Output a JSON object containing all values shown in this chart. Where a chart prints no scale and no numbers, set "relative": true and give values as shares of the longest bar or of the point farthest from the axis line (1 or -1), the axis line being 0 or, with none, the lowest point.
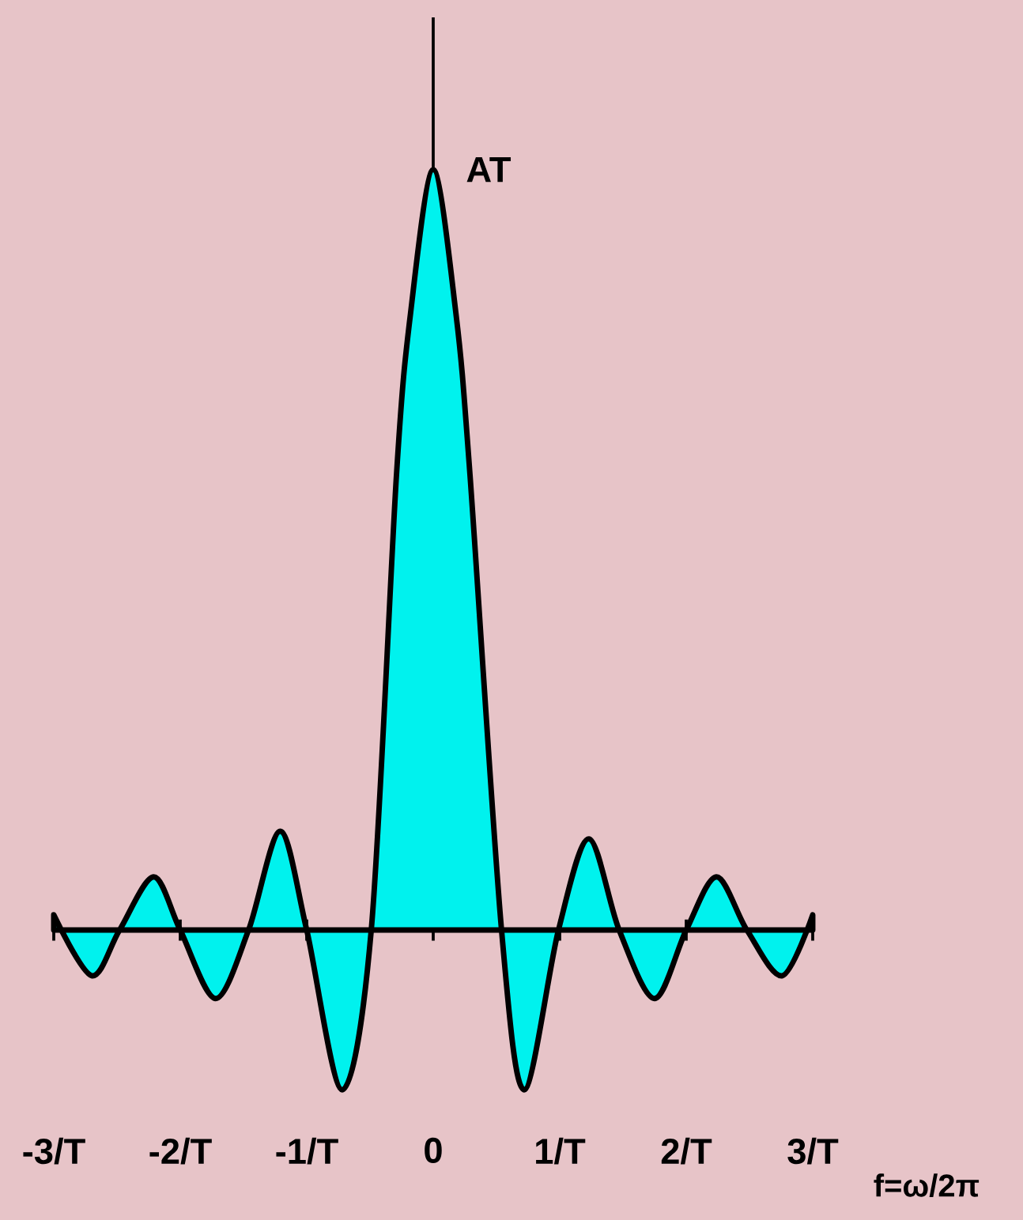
{
  "chart_data": {
    "type": "area",
    "relative": true,
    "color": "#00f2ee",
    "x": [
      -3,
      -2.7,
      -2.48,
      -2.21,
      -2.0,
      -1.72,
      -1.46,
      -1.21,
      -1.0,
      -0.72,
      -0.49,
      -0.29,
      -0.18,
      0,
      0.18,
      0.29,
      0.54,
      0.72,
      0.99,
      1.23,
      1.47,
      1.75,
      2.0,
      2.24,
      2.48,
      2.76,
      3.0
    ],
    "values": [
      0.02,
      -0.06,
      0,
      0.07,
      0,
      -0.09,
      0,
      0.13,
      0,
      -0.21,
      0,
      0.6,
      0.81,
      1,
      0.81,
      0.6,
      0,
      -0.21,
      0,
      0.12,
      0,
      -0.09,
      0,
      0.07,
      0,
      -0.06,
      0.02
    ],
    "xlim": [
      -3,
      3
    ],
    "xticks": [
      {
        "value": -3,
        "label": "-3/T"
      },
      {
        "value": -2,
        "label": "-2/T"
      },
      {
        "value": -1,
        "label": "-1/T"
      },
      0,
      {
        "value": 1,
        "label": "1/T"
      },
      {
        "value": 2,
        "label": "2/T"
      },
      {
        "value": 3,
        "label": "3/T"
      }
    ],
    "xlabel": "f=ω/2π",
    "annotations": [
      {
        "text": "AT",
        "x": 0,
        "y": 1
      }
    ]
  }
}
